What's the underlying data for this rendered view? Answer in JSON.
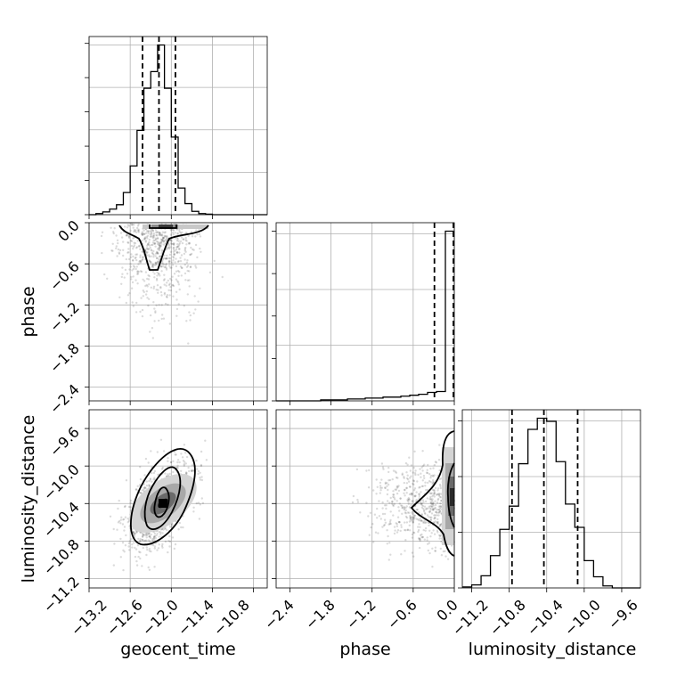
{
  "chart_data": {
    "type": "corner",
    "parameters": [
      "geocent_time",
      "phase",
      "luminosity_distance"
    ],
    "labels": {
      "x": [
        "geocent_time",
        "phase",
        "luminosity_distance"
      ],
      "y": [
        "phase",
        "luminosity_distance"
      ]
    },
    "ranges": {
      "geocent_time": [
        -13.2,
        -10.6
      ],
      "phase": [
        -2.6,
        0.0
      ],
      "luminosity_distance": [
        -11.3,
        -9.4
      ]
    },
    "ticks": {
      "geocent_time": [
        "−13.2",
        "−12.6",
        "−12.0",
        "−11.4",
        "−10.8"
      ],
      "phase": [
        "−2.4",
        "−1.8",
        "−1.2",
        "−0.6",
        "0.0"
      ],
      "luminosity_distance_x": [
        "−11.2",
        "−10.8",
        "−10.4",
        "−10.0",
        "−9.6"
      ],
      "luminosity_distance_y": [
        "−11.2",
        "−10.8",
        "−10.4",
        "−10.0",
        "−9.6"
      ]
    },
    "quantiles": {
      "geocent_time": [
        -12.42,
        -12.18,
        -11.94
      ],
      "phase": [
        -0.29,
        -0.0
      ],
      "luminosity_distance": [
        -10.77,
        -10.43,
        -10.07
      ]
    },
    "histograms": {
      "geocent_time": {
        "edges": [
          -13.2,
          -13.1,
          -13.0,
          -12.9,
          -12.8,
          -12.7,
          -12.6,
          -12.5,
          -12.4,
          -12.3,
          -12.2,
          -12.1,
          -12.0,
          -11.9,
          -11.8,
          -11.7,
          -11.6,
          -11.5,
          -11.4,
          -11.3,
          -11.2,
          -11.1,
          -11.0,
          -10.9,
          -10.8,
          -10.7,
          -10.6
        ],
        "counts": [
          0,
          2,
          5,
          10,
          18,
          40,
          88,
          152,
          228,
          258,
          306,
          228,
          140,
          48,
          20,
          6,
          2,
          1,
          0,
          0,
          0,
          0,
          0,
          0,
          0,
          0
        ]
      },
      "phase": {
        "edges": [
          -2.6,
          -2.47,
          -2.34,
          -2.21,
          -2.08,
          -1.95,
          -1.82,
          -1.69,
          -1.56,
          -1.43,
          -1.3,
          -1.17,
          -1.04,
          -0.91,
          -0.78,
          -0.65,
          -0.52,
          -0.39,
          -0.26,
          -0.13,
          0.0
        ],
        "counts": [
          0,
          0,
          0,
          0,
          0,
          1,
          1,
          1,
          2,
          2,
          3,
          3,
          4,
          4,
          5,
          6,
          7,
          9,
          10,
          181
        ]
      },
      "luminosity_distance": {
        "edges": [
          -11.3,
          -11.2,
          -11.1,
          -11.0,
          -10.9,
          -10.8,
          -10.7,
          -10.6,
          -10.5,
          -10.4,
          -10.3,
          -10.2,
          -10.1,
          -10.0,
          -9.9,
          -9.8,
          -9.7,
          -9.6,
          -9.5,
          -9.4
        ],
        "counts": [
          1,
          3,
          12,
          32,
          58,
          81,
          123,
          157,
          168,
          165,
          125,
          83,
          60,
          27,
          11,
          2,
          0,
          0,
          0
        ]
      }
    },
    "scatter": {
      "phase_vs_geocent_time": {
        "x_center": -12.2,
        "x_sd": 0.3,
        "tail_y_to": -2.5
      },
      "luminosity_distance_vs_geocent_time": {
        "x_center": -12.15,
        "y_center": -10.42,
        "correlation": 0.55
      },
      "luminosity_distance_vs_phase": {
        "peak_x": 0.0,
        "y_center": -10.42
      }
    },
    "grid": true
  }
}
